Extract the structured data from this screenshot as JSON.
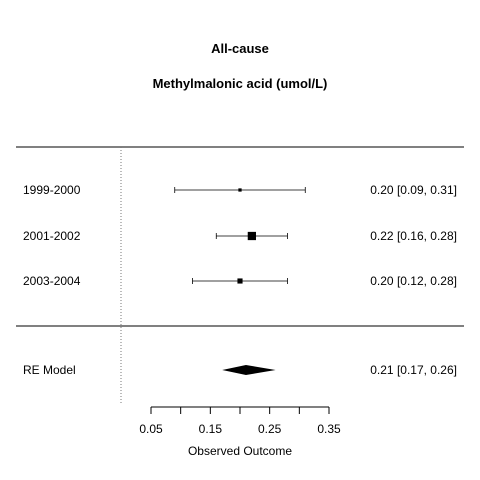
{
  "chart_data": {
    "type": "forest",
    "title": "All-cause",
    "subtitle": "Methylmalonic acid (umol/L)",
    "xlabel": "Observed Outcome",
    "xlim": [
      0.05,
      0.35
    ],
    "xticks": [
      0.05,
      0.1,
      0.15,
      0.2,
      0.25,
      0.3,
      0.35
    ],
    "xtick_labels": [
      "0.05",
      "",
      "0.15",
      "",
      "0.25",
      "",
      "0.35"
    ],
    "reference_line": 0,
    "studies": [
      {
        "label": "1999-2000",
        "estimate": 0.2,
        "lower": 0.09,
        "upper": 0.31,
        "text": "0.20 [0.09, 0.31]",
        "weight": 1
      },
      {
        "label": "2001-2002",
        "estimate": 0.22,
        "lower": 0.16,
        "upper": 0.28,
        "text": "0.22 [0.16, 0.28]",
        "weight": 5
      },
      {
        "label": "2003-2004",
        "estimate": 0.2,
        "lower": 0.12,
        "upper": 0.28,
        "text": "0.20 [0.12, 0.28]",
        "weight": 2.5
      }
    ],
    "summary": {
      "label": "RE Model",
      "estimate": 0.21,
      "lower": 0.17,
      "upper": 0.26,
      "text": "0.21 [0.17, 0.26]"
    }
  }
}
